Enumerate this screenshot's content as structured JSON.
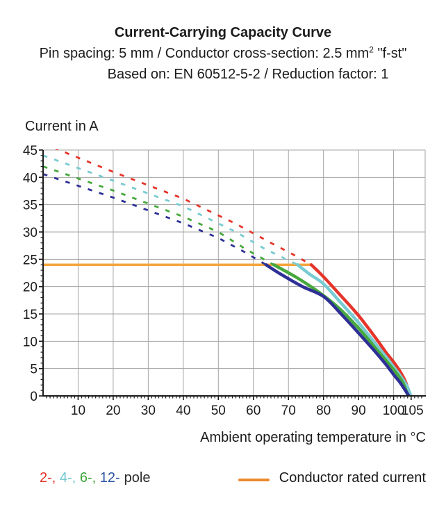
{
  "header": {
    "title": "Current-Carrying Capacity Curve",
    "line2_pre": "Pin spacing: 5 mm / Conductor cross-section: 2.5 mm",
    "line2_sup": "2",
    "line2_post": " \"f-st\"",
    "line3": "Based on: EN 60512-5-2 / Reduction factor: 1"
  },
  "chart_data": {
    "type": "line",
    "title": "Current-Carrying Capacity Curve",
    "xlabel": "Ambient operating temperature in °C",
    "ylabel": "Current in A",
    "xlim": [
      0,
      109
    ],
    "ylim": [
      0,
      45
    ],
    "x_major_ticks": [
      10,
      20,
      30,
      40,
      50,
      60,
      70,
      80,
      90,
      100,
      105
    ],
    "x_gridlines": [
      10,
      20,
      30,
      40,
      50,
      60,
      70,
      80,
      90,
      100
    ],
    "y_major_ticks": [
      0,
      5,
      10,
      15,
      20,
      25,
      30,
      35,
      40,
      45
    ],
    "y_gridlines": [
      5,
      10,
      15,
      20,
      25,
      30,
      35,
      40,
      45
    ],
    "minor_tick_step": 1,
    "grid": true,
    "legend_position": "bottom",
    "rated_current": {
      "label": "Conductor rated current",
      "value": 24,
      "x_start": 0,
      "x_end": 76.5,
      "color": "#f4a53e"
    },
    "series": [
      {
        "name": "2-pole",
        "color": "#e5352b",
        "dashed_points": [
          [
            0,
            46.2
          ],
          [
            20,
            41.0
          ],
          [
            40,
            36.1
          ],
          [
            55,
            31.5
          ],
          [
            65,
            28.0
          ],
          [
            71,
            26.0
          ],
          [
            76.5,
            24
          ]
        ],
        "solid_points": [
          [
            76.5,
            24
          ],
          [
            80,
            21.8
          ],
          [
            85,
            18.3
          ],
          [
            90,
            14.7
          ],
          [
            95,
            10.5
          ],
          [
            98,
            7.8
          ],
          [
            100,
            6.2
          ],
          [
            102,
            4.3
          ],
          [
            103.5,
            2.4
          ],
          [
            104.6,
            0
          ]
        ]
      },
      {
        "name": "4-pole",
        "color": "#79cbd1",
        "dashed_points": [
          [
            0,
            44.0
          ],
          [
            20,
            39.4
          ],
          [
            40,
            34.7
          ],
          [
            55,
            30.0
          ],
          [
            63,
            27.0
          ],
          [
            72.6,
            24
          ]
        ],
        "solid_points": [
          [
            72.6,
            24
          ],
          [
            76,
            22.3
          ],
          [
            80,
            20.5
          ],
          [
            85,
            17.0
          ],
          [
            90,
            13.4
          ],
          [
            95,
            9.4
          ],
          [
            98,
            7.0
          ],
          [
            100,
            5.3
          ],
          [
            102,
            3.6
          ],
          [
            103.8,
            1.8
          ],
          [
            104.9,
            0
          ]
        ]
      },
      {
        "name": "6-pole",
        "color": "#46a83d",
        "dashed_points": [
          [
            0,
            42.0
          ],
          [
            20,
            37.6
          ],
          [
            40,
            32.8
          ],
          [
            50,
            30.0
          ],
          [
            58,
            26.8
          ],
          [
            65.8,
            24
          ]
        ],
        "solid_points": [
          [
            65.8,
            24
          ],
          [
            72,
            21.8
          ],
          [
            78,
            19.3
          ],
          [
            84,
            16.3
          ],
          [
            90,
            12.4
          ],
          [
            95,
            8.6
          ],
          [
            100,
            4.8
          ],
          [
            102.5,
            2.6
          ],
          [
            104.1,
            0
          ]
        ]
      },
      {
        "name": "12-pole",
        "color": "#2e3095",
        "dashed_points": [
          [
            0,
            40.6
          ],
          [
            20,
            36.3
          ],
          [
            40,
            31.6
          ],
          [
            50,
            28.9
          ],
          [
            57,
            26.5
          ],
          [
            63.6,
            24
          ]
        ],
        "solid_points": [
          [
            63.6,
            24
          ],
          [
            68,
            22.2
          ],
          [
            74,
            20.0
          ],
          [
            80,
            18.2
          ],
          [
            85,
            15.0
          ],
          [
            90,
            11.5
          ],
          [
            95,
            7.9
          ],
          [
            98,
            5.6
          ],
          [
            100,
            3.9
          ],
          [
            102,
            2.3
          ],
          [
            104.35,
            0
          ]
        ]
      }
    ],
    "colors": {
      "grid": "#a3a3a3",
      "axis": "#1b1b1b",
      "tick_text": "#1b1b1b"
    }
  },
  "legend": {
    "pole_items": [
      {
        "label": "2-",
        "color": "#e5352b"
      },
      {
        "label": "4-",
        "color": "#6fc7ce"
      },
      {
        "label": "6-",
        "color": "#3da53a"
      },
      {
        "label": "12-",
        "color": "#2d55a4"
      }
    ],
    "separator": ",",
    "pole_suffix": "pole",
    "rated_label": "Conductor rated current",
    "rated_swatch_color": "#eb8a2d"
  }
}
